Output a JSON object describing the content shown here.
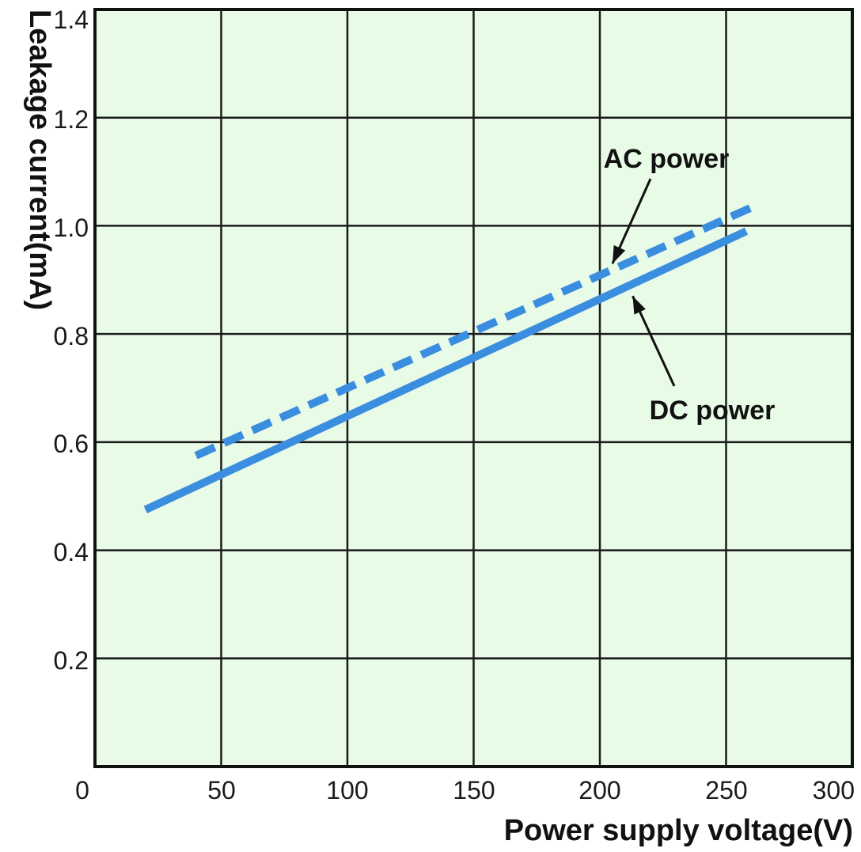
{
  "chart_data": {
    "type": "line",
    "xlabel": "Power supply voltage(V)",
    "ylabel": "Leakage current(mA)",
    "xlim": [
      0,
      300
    ],
    "ylim": [
      0,
      1.4
    ],
    "x_ticks": [
      "0",
      "50",
      "100",
      "150",
      "200",
      "250",
      "300"
    ],
    "y_ticks": [
      "0.2",
      "0.4",
      "0.6",
      "0.8",
      "1.0",
      "1.2",
      "1.4"
    ],
    "grid": true,
    "background_color": "#e8fbe6",
    "series": [
      {
        "name": "AC power",
        "style": "dashed",
        "color": "#3b8de0",
        "x": [
          40,
          263
        ],
        "y": [
          0.575,
          1.04
        ]
      },
      {
        "name": "DC power",
        "style": "solid",
        "color": "#3b8de0",
        "x": [
          20,
          258
        ],
        "y": [
          0.475,
          0.99
        ]
      }
    ],
    "annotations": [
      {
        "text": "AC power",
        "points_to_series": "AC power",
        "x": 205,
        "y": 0.93
      },
      {
        "text": "DC power",
        "points_to_series": "DC power",
        "x": 213,
        "y": 0.87
      }
    ]
  }
}
